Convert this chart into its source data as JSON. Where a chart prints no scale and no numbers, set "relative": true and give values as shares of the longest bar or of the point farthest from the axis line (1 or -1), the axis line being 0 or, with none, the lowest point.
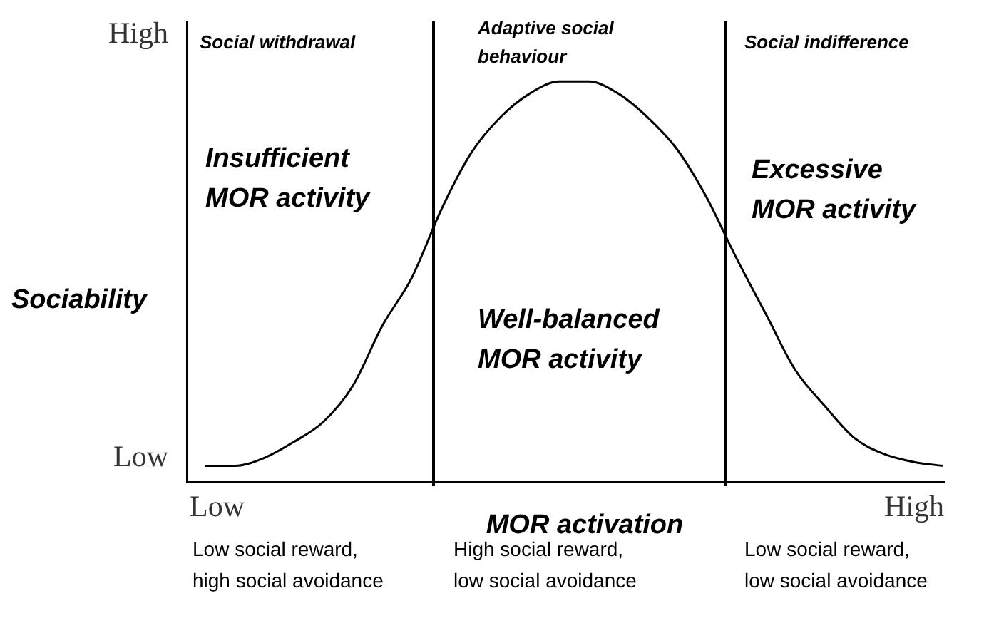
{
  "chart_data": {
    "type": "line",
    "relative": true,
    "xlabel": "MOR activation",
    "ylabel": "Sociability",
    "categories": [
      null,
      null,
      null,
      null,
      null,
      null,
      null,
      null,
      null,
      null,
      null,
      null,
      null,
      null,
      null,
      null,
      null,
      null,
      null,
      null,
      null,
      null,
      null,
      null,
      null,
      null
    ],
    "values": [
      0.04,
      0.04,
      0.06,
      0.1,
      0.15,
      0.24,
      0.39,
      0.51,
      0.68,
      0.82,
      0.91,
      0.97,
      1.0,
      1.0,
      0.97,
      0.91,
      0.83,
      0.71,
      0.56,
      0.42,
      0.28,
      0.19,
      0.11,
      0.07,
      0.05,
      0.04
    ],
    "color": "#000000",
    "marker": "none",
    "line_style": "solid",
    "legend": false,
    "annotations": [
      "High",
      "Low",
      "Low",
      "High",
      "Social withdrawal",
      "Adaptive social\nbehaviour",
      "Social indifference",
      "Insufficient\nMOR activity",
      "Well-balanced\nMOR activity",
      "Excessive\nMOR activity",
      "Low social reward,\nhigh social avoidance",
      "High social reward,\nlow social avoidance",
      "Low social reward,\nlow social avoidance"
    ]
  }
}
